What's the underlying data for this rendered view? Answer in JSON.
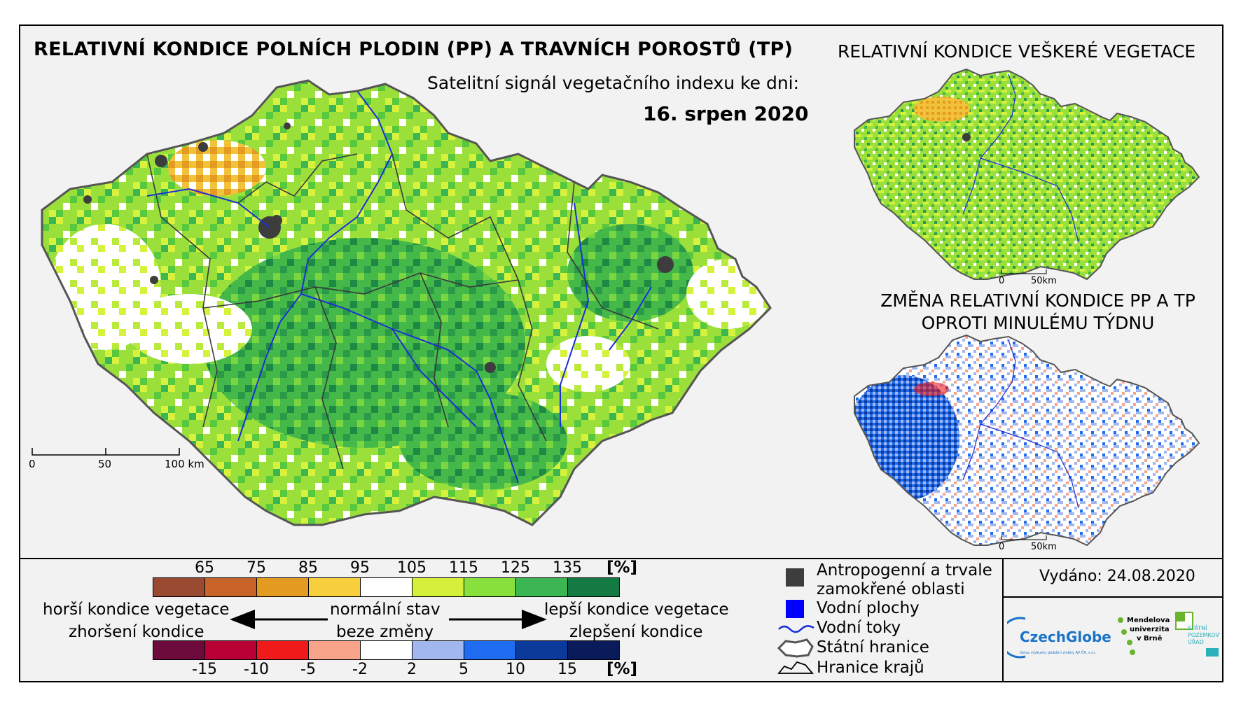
{
  "titles": {
    "main": "RELATIVNÍ KONDICE POLNÍCH PLODIN (PP) A TRAVNÍCH POROSTŮ (TP)",
    "subtitle": "Satelitní signál vegetačního indexu ke dni:",
    "date": "16. srpen 2020",
    "all_vegetation": "RELATIVNÍ KONDICE VEŠKERÉ VEGETACE",
    "change_line1": "ZMĚNA RELATIVNÍ KONDICE PP A TP",
    "change_line2": "OPROTI MINULÉMU TÝDNU"
  },
  "scalebars": {
    "main": {
      "zero": "0",
      "mid": "50",
      "end": "100 km"
    },
    "small_top": {
      "zero": "0",
      "end": "50km"
    },
    "small_bottom": {
      "zero": "0",
      "end": "50km"
    }
  },
  "condition_scale": {
    "unit": "[%]",
    "ticks": [
      "65",
      "75",
      "85",
      "95",
      "105",
      "115",
      "125",
      "135"
    ],
    "colors": [
      "#9a4a30",
      "#c8642a",
      "#e39b22",
      "#f7cf3c",
      "#ffffff",
      "#d4f03a",
      "#87e03c",
      "#3cb553",
      "#137a44"
    ]
  },
  "change_scale": {
    "unit": "[%]",
    "ticks": [
      "-15",
      "-10",
      "-5",
      "-2",
      "2",
      "5",
      "10",
      "15"
    ],
    "colors": [
      "#6d0a3c",
      "#b80034",
      "#f01a1a",
      "#f7a48a",
      "#ffffff",
      "#a3b7ef",
      "#1f6cf0",
      "#0b3a9a",
      "#0a1a5a"
    ]
  },
  "interpretation": {
    "worse_line1": "horší kondice vegetace",
    "worse_line2": "zhoršení kondice",
    "normal_line1": "normální stav",
    "normal_line2": "beze změny",
    "better_line1": "lepší kondice vegetace",
    "better_line2": "zlepšení kondice"
  },
  "map_key": {
    "anthropogenic_line1": "Antropogenní a trvale",
    "anthropogenic_line2": "zamokřené oblasti",
    "water_bodies": "Vodní plochy",
    "rivers": "Vodní toky",
    "state_border": "Státní hranice",
    "region_borders": "Hranice krajů"
  },
  "issued": "Vydáno: 24.08.2020",
  "logos": {
    "czechglobe": "CzechGlobe",
    "czechglobe_sub": "Ústav výzkumu globální změny AV ČR, v.v.i.",
    "mendel_1": "Mendelova",
    "mendel_2": "univerzita",
    "mendel_3": "v Brně",
    "spu_1": "STÁTNÍ",
    "spu_2": "POZEMKOVÝ",
    "spu_3": "ÚŘAD"
  },
  "colors": {
    "frame_bg": "#f2f2f2",
    "anthropogenic": "#3d3d3d",
    "water": "#0000ff",
    "river": "#1a2fd6",
    "czechglobe_blue": "#1a73c8",
    "mendel_green": "#6ab42d",
    "spu_teal": "#2ab0b8"
  }
}
